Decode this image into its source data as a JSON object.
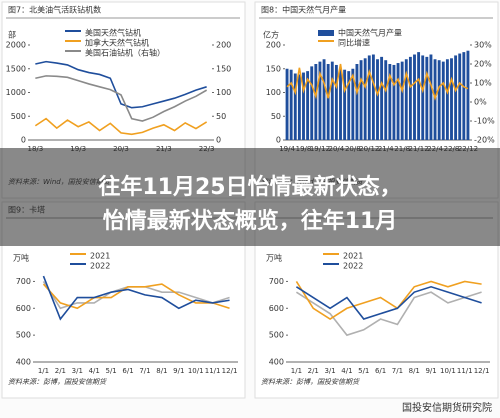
{
  "overlay_title": [
    "往年11月25日怡情最新状态，",
    "怡情最新状态概览，往年11月"
  ],
  "watermark": "国投安信期货研究院",
  "chart_data": [
    {
      "type": "line",
      "title": "图7：北美油气活跃钻机数",
      "ylabel": "部",
      "categories": [
        "18/3",
        null,
        null,
        null,
        "19/3",
        null,
        null,
        null,
        "20/3",
        null,
        null,
        null,
        "21/3",
        null,
        null,
        null,
        "22/3"
      ],
      "series": [
        {
          "name": "美国天然气钻机",
          "color": "#1f4e9c",
          "values": [
            1600,
            1650,
            1620,
            1580,
            1480,
            1420,
            1380,
            1300,
            760,
            680,
            700,
            760,
            820,
            880,
            960,
            1050,
            1120
          ]
        },
        {
          "name": "加拿大天然气钻机",
          "color": "#f0a020",
          "values": [
            300,
            450,
            250,
            420,
            280,
            380,
            200,
            350,
            150,
            120,
            160,
            250,
            320,
            200,
            360,
            240,
            380
          ]
        },
        {
          "name": "美国石油钻机（右轴）",
          "color": "#8a8a8a",
          "axis": "y2",
          "values": [
            130,
            135,
            134,
            132,
            125,
            118,
            112,
            106,
            95,
            45,
            40,
            48,
            60,
            70,
            82,
            92,
            105
          ]
        }
      ],
      "ylim": [
        0,
        2000
      ],
      "yticks": [
        0,
        500,
        1000,
        1500,
        2000
      ],
      "y2lim": [
        0,
        200
      ],
      "y2ticks": [
        0,
        50,
        100,
        150,
        200
      ],
      "source": "资料来源：Wind，国投安信期货"
    },
    {
      "type": "bar",
      "title": "图8：中国天然气月产量",
      "ylabel": "亿方",
      "categories": [
        "19/4",
        null,
        null,
        null,
        "19/8",
        null,
        null,
        null,
        "19/12",
        null,
        null,
        null,
        "20/4",
        null,
        null,
        null,
        "20/8",
        null,
        null,
        null,
        "20/12",
        null,
        null,
        null,
        "21/4",
        null,
        null,
        null,
        "21/8",
        null,
        null,
        null,
        "21/12",
        null,
        null,
        null,
        "22/4",
        null,
        null,
        null,
        "22/8",
        null,
        null,
        null,
        "22/12"
      ],
      "series": [
        {
          "name": "中国天然气月产量",
          "color": "#1f4e9c",
          "values": [
            150,
            148,
            140,
            138,
            142,
            145,
            155,
            160,
            165,
            170,
            160,
            165,
            158,
            150,
            148,
            145,
            150,
            160,
            168,
            172,
            178,
            180,
            170,
            175,
            168,
            160,
            158,
            162,
            165,
            170,
            175,
            180,
            185,
            178,
            175,
            180,
            170,
            168,
            165,
            170,
            172,
            178,
            182,
            185,
            188
          ]
        },
        {
          "name": "同比增速",
          "color": "#f0a020",
          "axis": "y2",
          "values": [
            8,
            10,
            5,
            18,
            6,
            12,
            9,
            3,
            15,
            10,
            2,
            12,
            8,
            20,
            6,
            10,
            14,
            5,
            12,
            8,
            16,
            10,
            4,
            10,
            6,
            14,
            9,
            12,
            6,
            15,
            8,
            10,
            12,
            6,
            15,
            9,
            2,
            8,
            10,
            5,
            12,
            6,
            10,
            8,
            7
          ]
        }
      ],
      "ylim": [
        0,
        200
      ],
      "yticks": [
        0,
        50,
        100,
        150,
        200
      ],
      "y2lim": [
        -20,
        30
      ],
      "y2ticks": [
        {
          "value": -20,
          "label": "-20%"
        },
        {
          "value": -10,
          "label": "-10%"
        },
        {
          "value": 0,
          "label": "0%"
        },
        {
          "value": 10,
          "label": "10%"
        },
        {
          "value": 20,
          "label": "20%"
        },
        {
          "value": 30,
          "label": "30%"
        }
      ],
      "source": "资料来源：Wind，国投安信期货"
    },
    {
      "type": "line",
      "title": "图9：卡塔",
      "ylabel": "万吨",
      "categories": [
        "1/1",
        "2/1",
        "3/1",
        "4/1",
        "5/1",
        "6/1",
        "7/1",
        "8/1",
        "9/1",
        "10/1",
        "11/1",
        "12/1"
      ],
      "series": [
        {
          "color": "#b0b0b0",
          "values": [
            700,
            600,
            620,
            620,
            660,
            680,
            680,
            660,
            660,
            640,
            620,
            640
          ]
        },
        {
          "name": "2021",
          "color": "#f0a020",
          "values": [
            690,
            620,
            600,
            640,
            640,
            680,
            680,
            690,
            650,
            620,
            620,
            600
          ]
        },
        {
          "name": "2022",
          "color": "#1f4e9c",
          "values": [
            720,
            560,
            640,
            640,
            660,
            670,
            650,
            640,
            600,
            630,
            620,
            630
          ]
        }
      ],
      "ylim": [
        400,
        750
      ],
      "yticks": [
        400,
        500,
        600,
        700
      ],
      "source": "资料来源：彭博，国投安信期货"
    },
    {
      "type": "line",
      "ylabel": "万吨",
      "categories": [
        "1/1",
        "2/1",
        "3/1",
        "4/1",
        "5/1",
        "6/1",
        "7/1",
        "8/1",
        "9/1",
        "10/1",
        "11/1",
        "12/1"
      ],
      "series": [
        {
          "color": "#b0b0b0",
          "values": [
            660,
            620,
            580,
            500,
            520,
            560,
            540,
            640,
            660,
            620,
            640,
            660
          ]
        },
        {
          "name": "2021",
          "color": "#f0a020",
          "values": [
            700,
            600,
            560,
            600,
            620,
            640,
            600,
            680,
            700,
            680,
            700,
            690
          ]
        },
        {
          "name": "2022",
          "color": "#1f4e9c",
          "values": [
            680,
            640,
            600,
            640,
            560,
            580,
            600,
            660,
            680,
            660,
            640,
            620
          ]
        }
      ],
      "ylim": [
        400,
        750
      ],
      "yticks": [
        400,
        500,
        600,
        700
      ],
      "source": "资料来源：彭博，国投安信期货"
    }
  ]
}
